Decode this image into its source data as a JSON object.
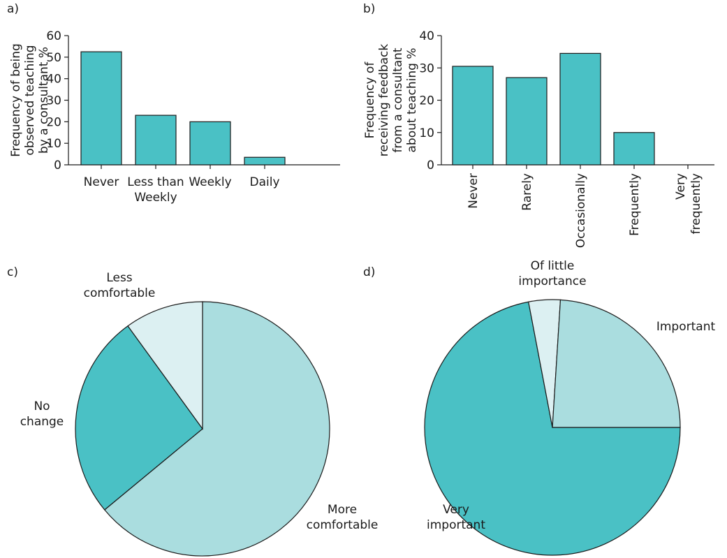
{
  "colors": {
    "teal": "#4ac1c5",
    "light_teal": "#aadddf",
    "pale_teal": "#dcf0f2",
    "axis": "#1a1a1a"
  },
  "chart_data": [
    {
      "id": "a",
      "type": "bar",
      "panel_label": "a)",
      "ylabel": [
        "Frequency of being",
        "observed teaching",
        "by a consultant %"
      ],
      "categories": [
        [
          "Never"
        ],
        [
          "Less than",
          "Weekly"
        ],
        [
          "Weekly"
        ],
        [
          "Daily"
        ]
      ],
      "values": [
        52.5,
        23,
        20,
        3.5
      ],
      "ylim": [
        0,
        60
      ],
      "yticks": [
        0,
        10,
        20,
        30,
        40,
        50,
        60
      ],
      "grid": false
    },
    {
      "id": "b",
      "type": "bar",
      "panel_label": "b)",
      "ylabel": [
        "Frequency of",
        "receiving feedback",
        "from a consultant",
        "about teaching %"
      ],
      "categories": [
        [
          "Never"
        ],
        [
          "Rarely"
        ],
        [
          "Occasionally"
        ],
        [
          "Frequently"
        ],
        [
          "Very",
          "frequently"
        ]
      ],
      "values": [
        30.5,
        27,
        34.5,
        10,
        0
      ],
      "ylim": [
        0,
        40
      ],
      "yticks": [
        0,
        10,
        20,
        30,
        40
      ],
      "grid": false
    },
    {
      "id": "c",
      "type": "pie",
      "panel_label": "c)",
      "slices": [
        {
          "label": [
            "More",
            "comfortable"
          ],
          "value": 64,
          "color": "light_teal"
        },
        {
          "label": [
            "No",
            "change"
          ],
          "value": 26,
          "color": "teal"
        },
        {
          "label": [
            "Less",
            "comfortable"
          ],
          "value": 10,
          "color": "pale_teal"
        }
      ]
    },
    {
      "id": "d",
      "type": "pie",
      "panel_label": "d)",
      "slices": [
        {
          "label": [
            "Very",
            "important"
          ],
          "value": 72,
          "color": "teal"
        },
        {
          "label": [
            "Of little",
            "importance"
          ],
          "value": 4,
          "color": "pale_teal"
        },
        {
          "label": [
            "Important"
          ],
          "value": 24,
          "color": "light_teal"
        }
      ]
    }
  ]
}
